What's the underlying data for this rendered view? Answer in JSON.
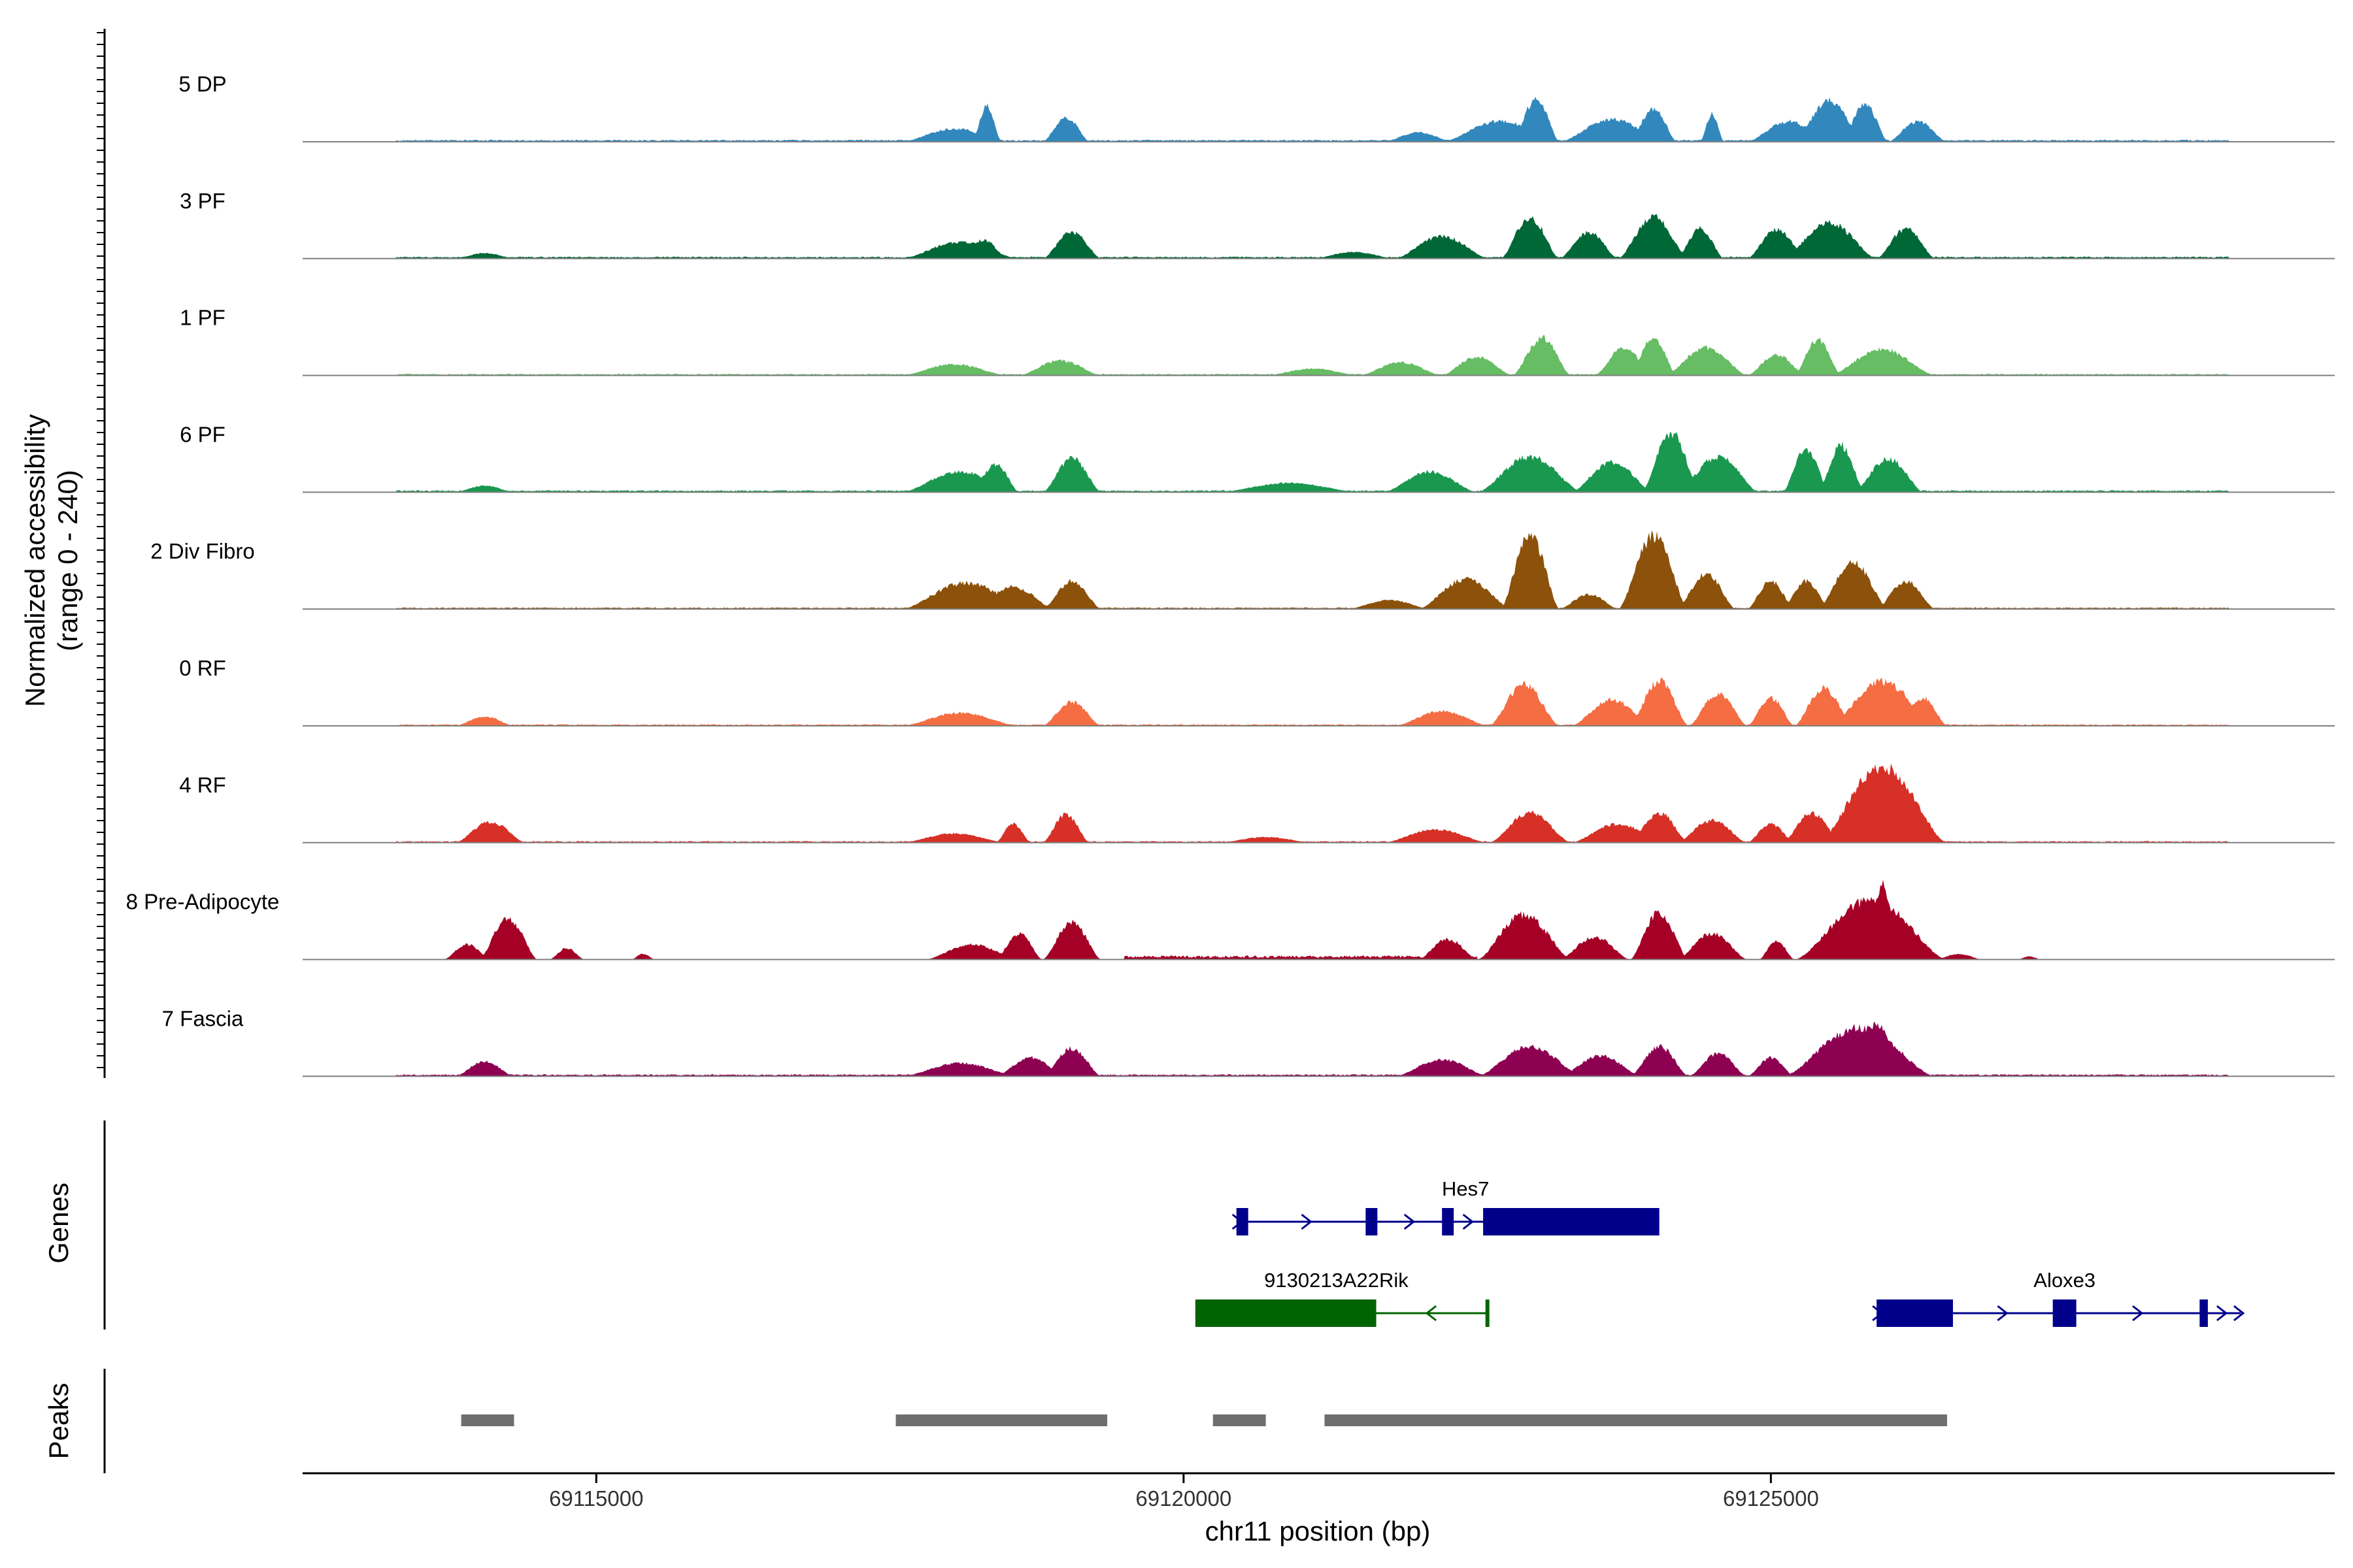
{
  "chart_data": {
    "type": "area",
    "title": "",
    "ylabel_line1": "Normalized accessibility",
    "ylabel_line2": "(range 0 - 240)",
    "yrange": [
      0,
      240
    ],
    "xlabel": "chr11 position (bp)",
    "xlim": [
      69112500,
      69129800
    ],
    "xticks": [
      {
        "value": 69115000,
        "label": "69115000"
      },
      {
        "value": 69120000,
        "label": "69120000"
      },
      {
        "value": 69125000,
        "label": "69125000"
      }
    ],
    "tracks": [
      {
        "name": "5 DP",
        "color": "#3288bd",
        "background": {
          "start": 69113300,
          "end": 69128900,
          "level": 5
        },
        "peaks": [
          [
            69117600,
            69118500,
            35
          ],
          [
            69118200,
            69118450,
            95
          ],
          [
            69118800,
            69119200,
            65
          ],
          [
            69121700,
            69122300,
            25
          ],
          [
            69122200,
            69123200,
            55
          ],
          [
            69122800,
            69123200,
            115
          ],
          [
            69123200,
            69124100,
            60
          ],
          [
            69123800,
            69124200,
            90
          ],
          [
            69124400,
            69124600,
            75
          ],
          [
            69124800,
            69125500,
            55
          ],
          [
            69125200,
            69125800,
            110
          ],
          [
            69125600,
            69126000,
            100
          ],
          [
            69126000,
            69126500,
            55
          ]
        ]
      },
      {
        "name": "3 PF",
        "color": "#006837",
        "background": {
          "start": 69113300,
          "end": 69128900,
          "level": 5
        },
        "peaks": [
          [
            69113800,
            69114300,
            15
          ],
          [
            69117600,
            69118600,
            45
          ],
          [
            69118100,
            69118500,
            50
          ],
          [
            69118800,
            69119300,
            70
          ],
          [
            69121100,
            69121800,
            18
          ],
          [
            69121800,
            69122600,
            60
          ],
          [
            69122700,
            69123200,
            110
          ],
          [
            69123200,
            69123700,
            70
          ],
          [
            69123700,
            69124300,
            112
          ],
          [
            69124200,
            69124600,
            80
          ],
          [
            69124800,
            69125300,
            80
          ],
          [
            69125100,
            69125900,
            95
          ],
          [
            69125900,
            69126400,
            80
          ]
        ]
      },
      {
        "name": "1 PF",
        "color": "#66bd63",
        "background": {
          "start": 69113300,
          "end": 69128900,
          "level": 4
        },
        "peaks": [
          [
            69117600,
            69118500,
            30
          ],
          [
            69118600,
            69119300,
            40
          ],
          [
            69120700,
            69121500,
            18
          ],
          [
            69121500,
            69122200,
            35
          ],
          [
            69122200,
            69122800,
            50
          ],
          [
            69122800,
            69123300,
            100
          ],
          [
            69123500,
            69124000,
            75
          ],
          [
            69123800,
            69124200,
            100
          ],
          [
            69124100,
            69124800,
            75
          ],
          [
            69124800,
            69125300,
            55
          ],
          [
            69125200,
            69125600,
            95
          ],
          [
            69125500,
            69126400,
            70
          ]
        ]
      },
      {
        "name": "6 PF",
        "color": "#1a9850",
        "background": {
          "start": 69113300,
          "end": 69128900,
          "level": 5
        },
        "peaks": [
          [
            69113800,
            69114300,
            18
          ],
          [
            69117600,
            69118600,
            55
          ],
          [
            69118200,
            69118600,
            75
          ],
          [
            69118800,
            69119300,
            90
          ],
          [
            69120300,
            69121500,
            25
          ],
          [
            69121700,
            69122500,
            55
          ],
          [
            69122500,
            69123400,
            95
          ],
          [
            69123300,
            69124000,
            80
          ],
          [
            69123900,
            69124400,
            160
          ],
          [
            69124200,
            69124900,
            95
          ],
          [
            69125100,
            69125500,
            115
          ],
          [
            69125400,
            69125800,
            125
          ],
          [
            69125700,
            69126300,
            90
          ]
        ]
      },
      {
        "name": "2 Div Fibro",
        "color": "#8c510a",
        "background": {
          "start": 69113300,
          "end": 69128900,
          "level": 4
        },
        "peaks": [
          [
            69117600,
            69118700,
            70
          ],
          [
            69118200,
            69118900,
            60
          ],
          [
            69118800,
            69119300,
            75
          ],
          [
            69121400,
            69122100,
            25
          ],
          [
            69122000,
            69122800,
            80
          ],
          [
            69122700,
            69123200,
            200
          ],
          [
            69123200,
            69123700,
            40
          ],
          [
            69123700,
            69124300,
            195
          ],
          [
            69124200,
            69124700,
            95
          ],
          [
            69124800,
            69125200,
            75
          ],
          [
            69125100,
            69125500,
            75
          ],
          [
            69125400,
            69126000,
            125
          ],
          [
            69125900,
            69126400,
            75
          ]
        ]
      },
      {
        "name": "0 RF",
        "color": "#f46d43",
        "background": {
          "start": 69113300,
          "end": 69128900,
          "level": 4
        },
        "peaks": [
          [
            69113800,
            69114300,
            25
          ],
          [
            69117600,
            69118600,
            35
          ],
          [
            69118800,
            69119300,
            65
          ],
          [
            69121800,
            69122600,
            40
          ],
          [
            69122600,
            69123200,
            110
          ],
          [
            69123300,
            69124000,
            70
          ],
          [
            69123800,
            69124300,
            120
          ],
          [
            69124300,
            69124800,
            85
          ],
          [
            69124800,
            69125200,
            75
          ],
          [
            69125200,
            69125700,
            100
          ],
          [
            69125500,
            69126400,
            120
          ],
          [
            69126100,
            69126500,
            75
          ]
        ]
      },
      {
        "name": "4 RF",
        "color": "#d73027",
        "background": {
          "start": 69113300,
          "end": 69128900,
          "level": 4
        },
        "peaks": [
          [
            69113800,
            69114400,
            55
          ],
          [
            69117600,
            69118500,
            25
          ],
          [
            69118400,
            69118700,
            50
          ],
          [
            69118800,
            69119200,
            75
          ],
          [
            69120300,
            69121100,
            15
          ],
          [
            69121700,
            69122600,
            35
          ],
          [
            69122600,
            69123300,
            80
          ],
          [
            69123300,
            69124100,
            50
          ],
          [
            69123800,
            69124300,
            80
          ],
          [
            69124200,
            69124800,
            60
          ],
          [
            69124800,
            69125200,
            50
          ],
          [
            69125100,
            69125600,
            80
          ],
          [
            69125400,
            69126500,
            205
          ],
          [
            69125900,
            69126300,
            170
          ]
        ]
      },
      {
        "name": "8 Pre-Adipocyte",
        "color": "#a50026",
        "background": {
          "start": 69119500,
          "end": 69122500,
          "level": 10
        },
        "peaks": [
          [
            69113700,
            69114100,
            40
          ],
          [
            69114000,
            69114500,
            110
          ],
          [
            69114600,
            69114900,
            30
          ],
          [
            69115300,
            69115500,
            15
          ],
          [
            69117800,
            69118600,
            40
          ],
          [
            69118400,
            69118800,
            70
          ],
          [
            69118800,
            69119300,
            100
          ],
          [
            69122000,
            69122500,
            55
          ],
          [
            69122500,
            69123300,
            120
          ],
          [
            69123200,
            69123800,
            60
          ],
          [
            69123800,
            69124300,
            125
          ],
          [
            69124200,
            69124800,
            70
          ],
          [
            69124900,
            69125200,
            50
          ],
          [
            69125200,
            69126500,
            160
          ],
          [
            69125800,
            69126100,
            200
          ],
          [
            69126400,
            69126800,
            15
          ],
          [
            69127100,
            69127300,
            8
          ]
        ]
      },
      {
        "name": "7 Fascia",
        "color": "#8e0152",
        "background": {
          "start": 69113300,
          "end": 69128900,
          "level": 5
        },
        "peaks": [
          [
            69113800,
            69114300,
            40
          ],
          [
            69117600,
            69118600,
            35
          ],
          [
            69118400,
            69119000,
            50
          ],
          [
            69118800,
            69119300,
            75
          ],
          [
            69121800,
            69122600,
            45
          ],
          [
            69122500,
            69123400,
            80
          ],
          [
            69123200,
            69123900,
            55
          ],
          [
            69123800,
            69124300,
            80
          ],
          [
            69124300,
            69124800,
            60
          ],
          [
            69124800,
            69125200,
            50
          ],
          [
            69125100,
            69126400,
            130
          ],
          [
            69125700,
            69126100,
            145
          ]
        ]
      }
    ],
    "genes_panel_title": "Genes",
    "genes": [
      {
        "name": "Hes7",
        "strand": "+",
        "color": "#00008b",
        "row": 0,
        "start": 69120450,
        "end": 69124050,
        "exons": [
          [
            69120450,
            69120550
          ],
          [
            69121550,
            69121650
          ],
          [
            69122200,
            69122300
          ],
          [
            69122550,
            69124050
          ]
        ]
      },
      {
        "name": "9130213A22Rik",
        "strand": "-",
        "color": "#006400",
        "row": 1,
        "start": 69120100,
        "end": 69122600,
        "exons": [
          [
            69120100,
            69121640
          ],
          [
            69122570,
            69122600
          ]
        ]
      },
      {
        "name": "Aloxe3",
        "strand": "+",
        "color": "#00008b",
        "row": 1,
        "start": 69125900,
        "end": 69129000,
        "exons": [
          [
            69125900,
            69126550
          ],
          [
            69127400,
            69127600
          ],
          [
            69128650,
            69128720
          ]
        ]
      }
    ],
    "peaks_panel_title": "Peaks",
    "peak_regions": [
      [
        69113850,
        69114300
      ],
      [
        69117550,
        69119350
      ],
      [
        69120250,
        69120700
      ],
      [
        69121200,
        69126500
      ]
    ],
    "peak_color": "#6e6e6e"
  }
}
